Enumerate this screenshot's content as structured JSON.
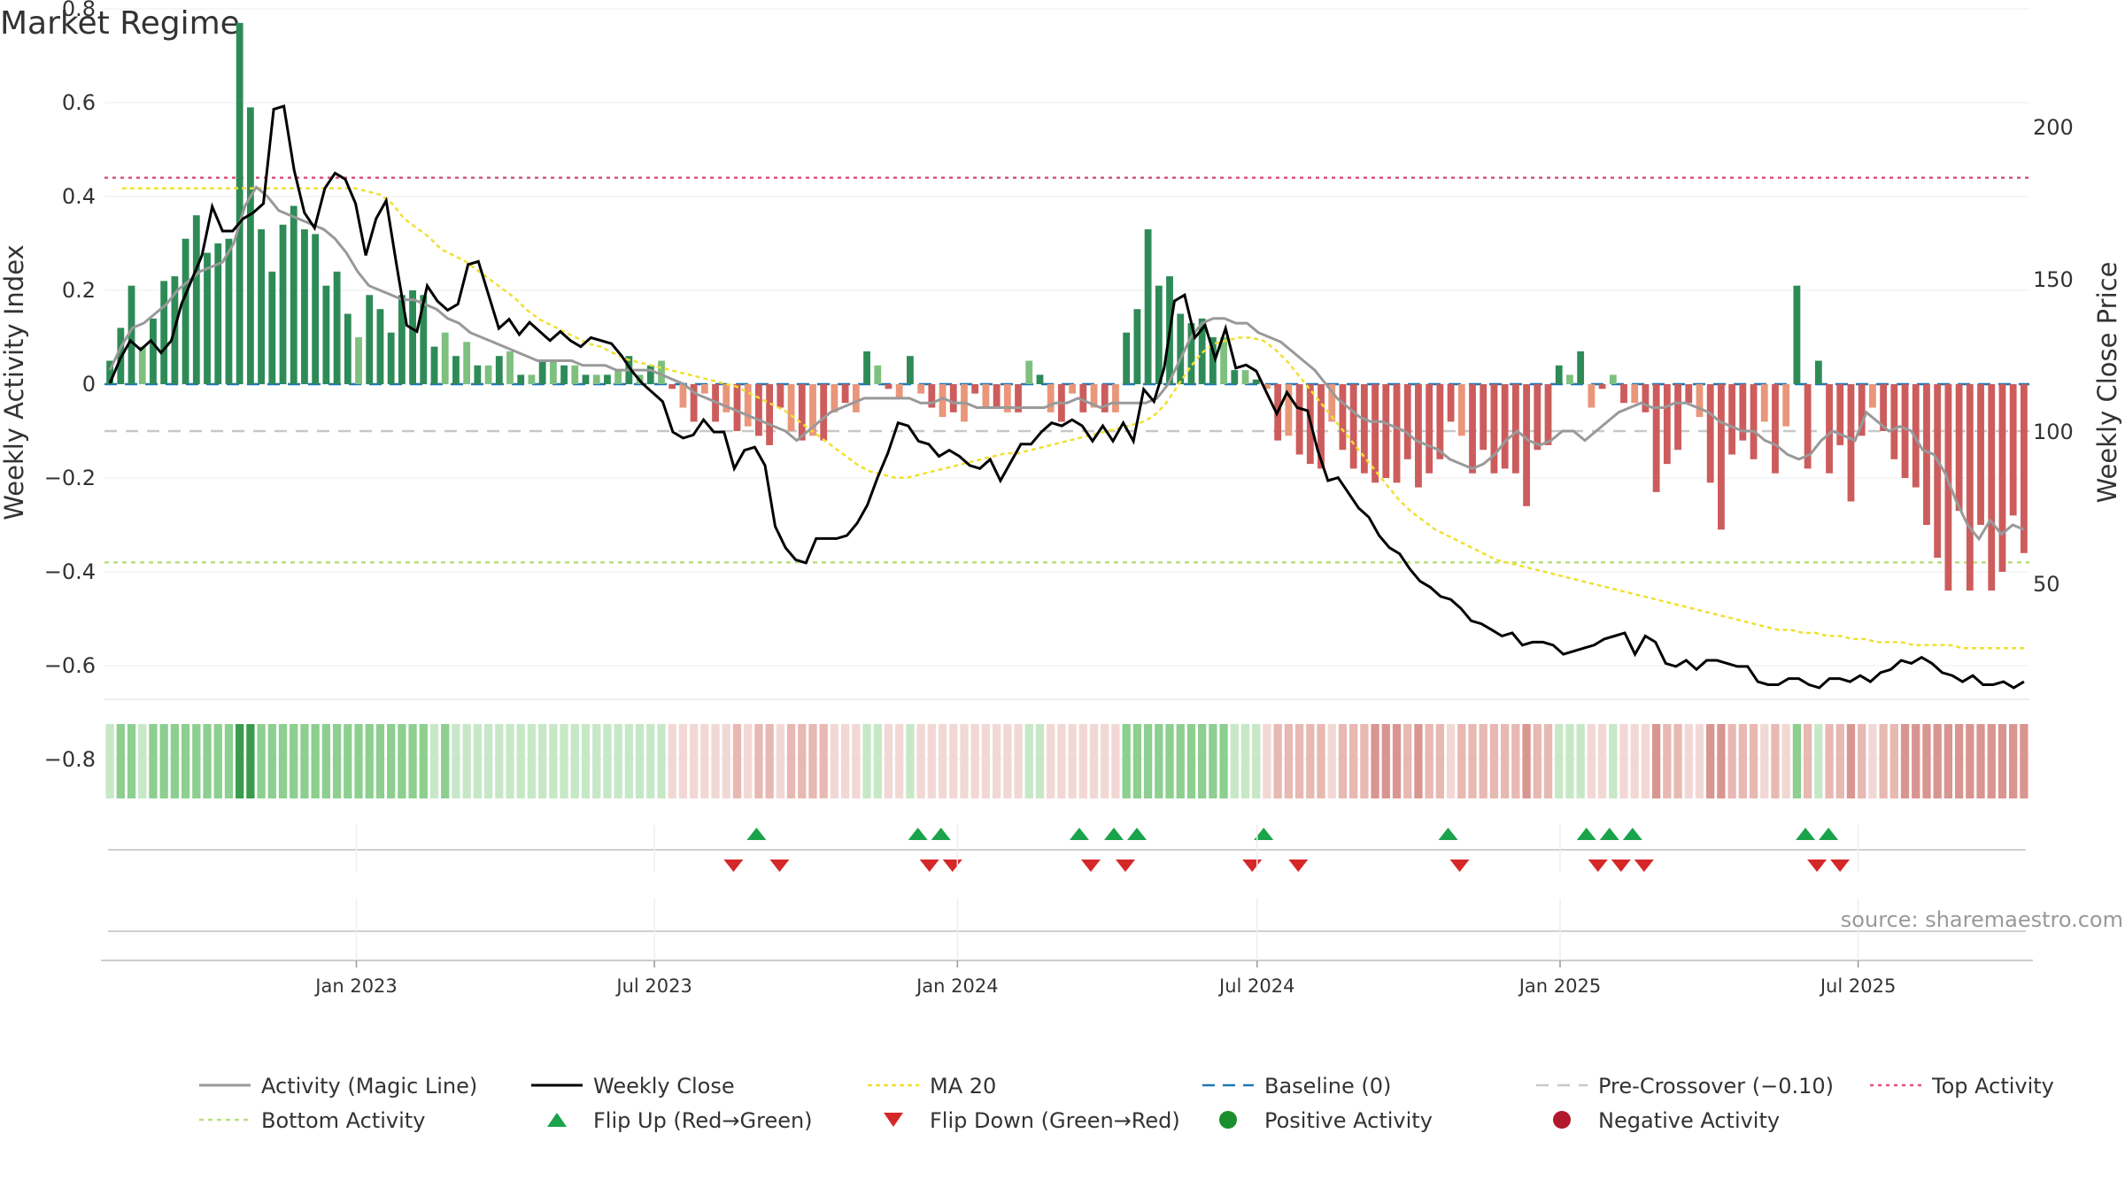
{
  "chart_data": {
    "type": "bar",
    "title": "Market Regime",
    "ylabel": "Weekly Activity Index",
    "y2label": "Weekly Close Price",
    "ylim": [
      -0.8,
      0.8
    ],
    "y2lim": [
      10,
      230
    ],
    "yticks": [
      "0.8",
      "0.6",
      "0.4",
      "0.2",
      "0",
      "−0.2",
      "−0.4",
      "−0.6",
      "−0.8"
    ],
    "y2ticks": [
      "200",
      "150",
      "100",
      "50"
    ],
    "xticks": [
      "Jan 2023",
      "Jul 2023",
      "Jan 2024",
      "Jul 2024",
      "Jan 2025",
      "Jul 2025"
    ],
    "grid": true,
    "reference_lines": {
      "baseline": 0,
      "pre_crossover": -0.1,
      "top_activity": 0.44,
      "bottom_activity": -0.38
    },
    "weeks": 157,
    "activity": [
      0.05,
      0.12,
      0.21,
      0.08,
      0.14,
      0.22,
      0.23,
      0.31,
      0.36,
      0.28,
      0.3,
      0.31,
      0.77,
      0.59,
      0.33,
      0.24,
      0.34,
      0.38,
      0.33,
      0.32,
      0.21,
      0.24,
      0.15,
      0.1,
      0.19,
      0.16,
      0.11,
      0.19,
      0.2,
      0.19,
      0.08,
      0.11,
      0.06,
      0.09,
      0.04,
      0.04,
      0.06,
      0.07,
      0.02,
      0.02,
      0.05,
      0.05,
      0.04,
      0.04,
      0.02,
      0.02,
      0.02,
      0.03,
      0.06,
      0.02,
      0.04,
      0.05,
      -0.01,
      -0.05,
      -0.08,
      -0.02,
      -0.08,
      -0.06,
      -0.1,
      -0.09,
      -0.11,
      -0.13,
      -0.05,
      -0.1,
      -0.12,
      -0.11,
      -0.12,
      -0.06,
      -0.04,
      -0.06,
      0.07,
      0.04,
      -0.01,
      -0.03,
      0.06,
      -0.02,
      -0.05,
      -0.07,
      -0.06,
      -0.08,
      -0.02,
      -0.05,
      -0.05,
      -0.06,
      -0.06,
      0.05,
      0.02,
      -0.06,
      -0.08,
      -0.02,
      -0.06,
      -0.05,
      -0.06,
      -0.06,
      0.11,
      0.16,
      0.33,
      0.21,
      0.23,
      0.15,
      0.13,
      0.14,
      0.1,
      0.1,
      0.03,
      0.03,
      0.01,
      -0.01,
      -0.12,
      -0.11,
      -0.15,
      -0.17,
      -0.18,
      -0.08,
      -0.14,
      -0.18,
      -0.19,
      -0.21,
      -0.2,
      -0.21,
      -0.16,
      -0.22,
      -0.19,
      -0.16,
      -0.08,
      -0.11,
      -0.19,
      -0.14,
      -0.19,
      -0.18,
      -0.19,
      -0.26,
      -0.14,
      -0.13,
      0.04,
      0.02,
      0.07,
      -0.05,
      -0.01,
      0.02,
      -0.04,
      -0.04,
      -0.06,
      -0.23,
      -0.17,
      -0.14,
      -0.04,
      -0.07,
      -0.21,
      -0.31,
      -0.15,
      -0.12,
      -0.16,
      -0.08,
      -0.19,
      -0.09,
      0.21
    ],
    "activity_tail": [
      -0.18,
      0.05,
      -0.19,
      -0.13,
      -0.25,
      -0.11,
      -0.05,
      -0.1,
      -0.16,
      -0.2,
      -0.22,
      -0.3,
      -0.37,
      -0.44,
      -0.27,
      -0.44,
      -0.3,
      -0.44,
      -0.4,
      -0.28,
      -0.36
    ],
    "magic_line": [
      0.03,
      0.08,
      0.12,
      0.13,
      0.15,
      0.17,
      0.2,
      0.22,
      0.24,
      0.25,
      0.26,
      0.3,
      0.38,
      0.42,
      0.4,
      0.37,
      0.36,
      0.35,
      0.34,
      0.33,
      0.31,
      0.28,
      0.24,
      0.21,
      0.2,
      0.19,
      0.18,
      0.18,
      0.17,
      0.16,
      0.14,
      0.13,
      0.11,
      0.1,
      0.09,
      0.08,
      0.07,
      0.06,
      0.05,
      0.05,
      0.05,
      0.05,
      0.04,
      0.04,
      0.04,
      0.03,
      0.03,
      0.03,
      0.03,
      0.02,
      0.01,
      0.0,
      -0.02,
      -0.03,
      -0.04,
      -0.05,
      -0.06,
      -0.07,
      -0.08,
      -0.09,
      -0.1,
      -0.12,
      -0.1,
      -0.08,
      -0.06,
      -0.05,
      -0.04,
      -0.03,
      -0.03,
      -0.03,
      -0.03,
      -0.03,
      -0.04,
      -0.04,
      -0.03,
      -0.04,
      -0.04,
      -0.05,
      -0.05,
      -0.05,
      -0.05,
      -0.05,
      -0.05,
      -0.05,
      -0.04,
      -0.04,
      -0.03,
      -0.04,
      -0.05,
      -0.04,
      -0.04,
      -0.04,
      -0.04,
      -0.03,
      0.0,
      0.05,
      0.1,
      0.13,
      0.14,
      0.14,
      0.13,
      0.13,
      0.11,
      0.1,
      0.09,
      0.07,
      0.05,
      0.03,
      0.0,
      -0.03,
      -0.05,
      -0.07,
      -0.08,
      -0.08,
      -0.09,
      -0.1,
      -0.12,
      -0.13,
      -0.14,
      -0.16,
      -0.17,
      -0.18,
      -0.17,
      -0.15,
      -0.12,
      -0.1,
      -0.12,
      -0.13,
      -0.12,
      -0.1,
      -0.1,
      -0.12,
      -0.1,
      -0.08,
      -0.06,
      -0.05,
      -0.04,
      -0.05,
      -0.05,
      -0.04,
      -0.04,
      -0.05,
      -0.06,
      -0.08,
      -0.09,
      -0.1,
      -0.1,
      -0.12,
      -0.13,
      -0.15,
      -0.16,
      -0.15,
      -0.12,
      -0.1,
      -0.11,
      -0.12,
      -0.06,
      -0.08,
      -0.1,
      -0.09,
      -0.1,
      -0.14,
      -0.15,
      -0.19,
      -0.25,
      -0.3,
      -0.33,
      -0.29,
      -0.32,
      -0.3,
      -0.31
    ],
    "weekly_close": [
      116,
      124,
      130,
      127,
      130,
      126,
      130,
      142,
      150,
      158,
      174,
      166,
      166,
      170,
      172,
      175,
      206,
      207,
      186,
      172,
      167,
      180,
      185,
      183,
      175,
      158,
      170,
      176,
      155,
      135,
      133,
      148,
      143,
      140,
      142,
      155,
      156,
      145,
      134,
      137,
      132,
      136,
      133,
      130,
      133,
      130,
      128,
      131,
      130,
      129,
      125,
      120,
      116,
      113,
      110,
      100,
      98,
      99,
      104,
      100,
      100,
      88,
      94,
      95,
      89,
      69,
      62,
      58,
      57,
      65,
      65,
      65,
      66,
      70,
      76,
      85,
      93,
      103,
      102,
      97,
      96,
      92,
      94,
      92,
      89,
      88,
      91,
      84,
      90,
      96,
      96,
      100,
      103,
      102,
      104,
      102,
      97,
      102,
      97,
      103,
      97,
      114,
      110,
      121,
      143,
      145,
      131,
      135,
      124,
      134,
      121,
      122,
      120,
      113,
      106,
      113,
      108,
      107,
      94,
      84,
      85,
      80,
      75,
      72,
      66,
      62,
      60,
      55,
      51,
      49,
      46,
      45,
      42,
      38,
      37,
      35,
      33,
      34,
      30,
      31,
      31,
      30,
      27,
      28,
      29,
      30,
      32,
      33,
      34,
      27,
      33,
      31,
      24,
      23,
      25,
      22,
      25,
      25,
      24,
      23,
      23,
      18,
      17,
      17,
      19,
      19,
      17,
      16,
      19,
      19,
      18,
      20,
      18,
      21,
      22,
      25,
      24,
      26,
      24,
      21,
      20,
      18,
      20,
      17,
      17,
      18,
      16,
      18
    ],
    "ma20": [
      null,
      180,
      180,
      180,
      180,
      180,
      180,
      180,
      180,
      180,
      180,
      180,
      180,
      180,
      180,
      180,
      180,
      180,
      180,
      180,
      180,
      179,
      178,
      175,
      170,
      167,
      164,
      160,
      158,
      156,
      153,
      150,
      147,
      144,
      140,
      137,
      135,
      133,
      131,
      129,
      128,
      126,
      124,
      123,
      122,
      121,
      120,
      119,
      118,
      117,
      116,
      115,
      113,
      111,
      109,
      107,
      104,
      101,
      98,
      95,
      92,
      89,
      87,
      86,
      85,
      85,
      86,
      87,
      88,
      89,
      90,
      91,
      92,
      93,
      93,
      94,
      95,
      96,
      97,
      98,
      99,
      100,
      101,
      102,
      103,
      105,
      109,
      115,
      121,
      126,
      129,
      130,
      131,
      131,
      130,
      127,
      123,
      118,
      113,
      108,
      103,
      98,
      93,
      88,
      83,
      78,
      74,
      71,
      68,
      66,
      64,
      62,
      60,
      58,
      57,
      56,
      55,
      54,
      53,
      52,
      51,
      50,
      49,
      48,
      47,
      46,
      45,
      44,
      43,
      42,
      41,
      40,
      39,
      38,
      37,
      36,
      35,
      35,
      34,
      34,
      33,
      33,
      32,
      32,
      31,
      31,
      31,
      30,
      30,
      30,
      30,
      29,
      29,
      29,
      29,
      29,
      29
    ],
    "flip_up": [
      "2023-09-01",
      "2023-12-08",
      "2023-12-22",
      "2024-03-15",
      "2024-04-05",
      "2024-04-19",
      "2024-07-05",
      "2024-10-25",
      "2025-01-17",
      "2025-01-31",
      "2025-02-14",
      "2025-05-30",
      "2025-06-13"
    ],
    "flip_down": [
      "2023-08-18",
      "2023-09-15",
      "2023-12-15",
      "2023-12-29",
      "2024-03-22",
      "2024-04-12",
      "2024-06-28",
      "2024-07-26",
      "2024-11-01",
      "2025-01-24",
      "2025-02-07",
      "2025-02-21",
      "2025-06-06",
      "2025-06-20"
    ],
    "legend": [
      {
        "key": "magic",
        "label": "Activity (Magic Line)"
      },
      {
        "key": "close",
        "label": "Weekly Close"
      },
      {
        "key": "ma20",
        "label": "MA 20"
      },
      {
        "key": "baseline",
        "label": "Baseline (0)"
      },
      {
        "key": "precross",
        "label": "Pre-Crossover (−0.10)"
      },
      {
        "key": "top",
        "label": "Top Activity"
      },
      {
        "key": "bottom",
        "label": "Bottom Activity"
      },
      {
        "key": "flipup",
        "label": "Flip Up (Red→Green)"
      },
      {
        "key": "flipdown",
        "label": "Flip Down (Green→Red)"
      },
      {
        "key": "pos",
        "label": "Positive Activity"
      },
      {
        "key": "neg",
        "label": "Negative Activity"
      }
    ],
    "colors": {
      "bar_pos_strong": "#2e8b57",
      "bar_pos_light": "#7ec07e",
      "bar_neg_strong": "#cd5c5c",
      "bar_neg_light": "#e9967a",
      "magic_line": "#999999",
      "weekly_close": "#000000",
      "ma20": "#f0e030",
      "baseline": "#1f77b4",
      "pre_crossover": "#c8c8c8",
      "top_activity": "#d9577a",
      "bottom_activity": "#b8e07a",
      "flip_up": "#1aa34a",
      "flip_down": "#d62728",
      "pos_dot": "#1a8f2c",
      "neg_dot": "#b2182b"
    }
  },
  "source": "source: sharemaestro.com"
}
